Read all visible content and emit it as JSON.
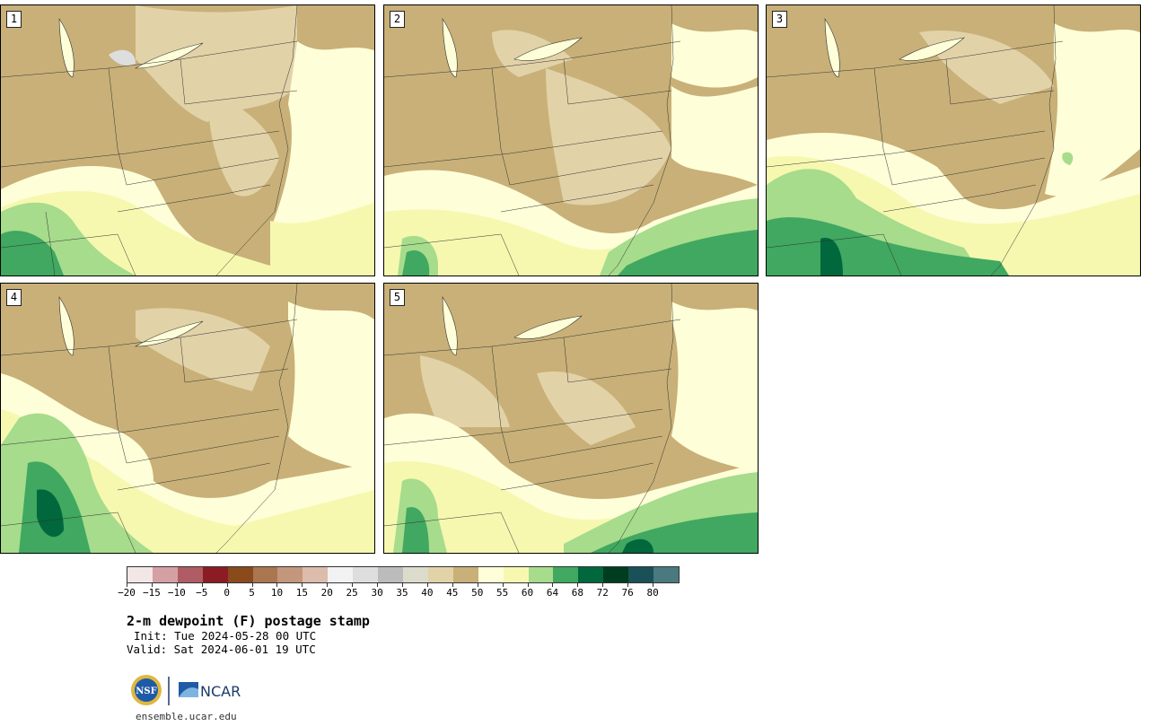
{
  "panels": [
    {
      "label": "1"
    },
    {
      "label": "2"
    },
    {
      "label": "3"
    },
    {
      "label": "4"
    },
    {
      "label": "5"
    }
  ],
  "legend": {
    "colors": [
      "#f2e6e6",
      "#d4a0a4",
      "#b05c64",
      "#8c1c24",
      "#8a4a1c",
      "#aa7650",
      "#c4967c",
      "#dcbcac",
      "#f2f2f2",
      "#dedede",
      "#bcbcbc",
      "#dcdccc",
      "#e2d2a8",
      "#c8b078",
      "#fefed8",
      "#f6f8b0",
      "#a6dc8c",
      "#40a860",
      "#00683c",
      "#003c20",
      "#1a5058",
      "#4a7a80"
    ],
    "tick_labels": [
      "−20",
      "−15",
      "−10",
      "−5",
      "0",
      "5",
      "10",
      "15",
      "20",
      "25",
      "30",
      "35",
      "40",
      "45",
      "50",
      "55",
      "60",
      "64",
      "68",
      "72",
      "76",
      "80"
    ]
  },
  "title": "2-m dewpoint (F) postage stamp",
  "init": "Init: Tue 2024-05-28 00 UTC",
  "valid": "Valid: Sat 2024-06-01 19 UTC",
  "logos": {
    "nsf_text": "NSF",
    "ncar_text": "NCAR"
  },
  "site": "ensemble.ucar.edu",
  "map_colors": {
    "tan": "#c8b078",
    "light_tan": "#e2d2a8",
    "grey": "#dedede",
    "cream": "#fefed8",
    "pale_yellow": "#f6f8b0",
    "light_green": "#a6dc8c",
    "green": "#40a860",
    "dark_green": "#00683c"
  }
}
